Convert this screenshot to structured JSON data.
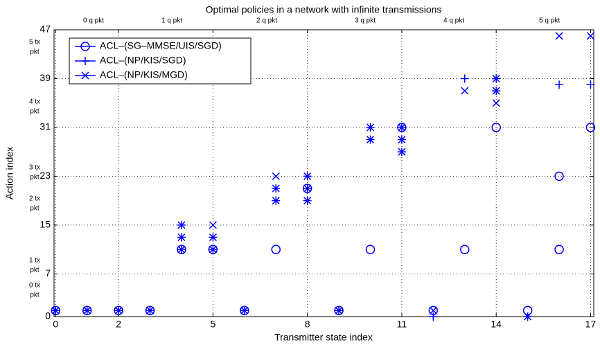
{
  "chart_data": {
    "type": "scatter",
    "title": "Optimal policies in a network with infinite transmissions",
    "x_label": "Transmitter state index",
    "y_label": "Action index",
    "xlim": [
      -0.05,
      17.1
    ],
    "ylim": [
      0,
      47
    ],
    "xticks": [
      0,
      2,
      5,
      8,
      11,
      14,
      17
    ],
    "yticks": [
      0,
      7,
      15,
      23,
      31,
      39,
      47
    ],
    "grid": true,
    "legend": "upper left",
    "top_labels": [
      "0 q pkt",
      "1 q pkt",
      "2 q pkt",
      "3 q pkt",
      "4 q pkt",
      "5 q pkt"
    ],
    "side_labels": [
      [
        "0 tx",
        "pkt"
      ],
      [
        "1 tx",
        "pkt"
      ],
      [
        "2 tx",
        "pkt"
      ],
      [
        "3 tx",
        "pkt"
      ],
      [
        "4 tx",
        "pkt"
      ],
      [
        "5 tx",
        "pkt"
      ]
    ],
    "series": [
      {
        "name": "ACL–(SG–MMSE/UIS/SGD)",
        "color": "#0000ff",
        "marker": "circle",
        "x": [
          0,
          1,
          2,
          3,
          4,
          5,
          6,
          7,
          8,
          9,
          10,
          11,
          12,
          13,
          14,
          15,
          16,
          16,
          17
        ],
        "y": [
          1,
          1,
          1,
          1,
          11,
          11,
          1,
          11,
          21,
          1,
          11,
          31,
          1,
          11,
          31,
          1,
          11,
          23,
          31
        ]
      },
      {
        "name": "ACL–(NP/KIS/SGD)",
        "color": "#0000ff",
        "marker": "plus",
        "x": [
          0,
          1,
          2,
          3,
          4,
          4,
          4,
          5,
          5,
          6,
          7,
          7,
          8,
          8,
          8,
          9,
          10,
          10,
          11,
          11,
          11,
          12,
          13,
          14,
          14,
          15,
          16,
          17
        ],
        "y": [
          1,
          1,
          1,
          1,
          11,
          13,
          15,
          11,
          13,
          1,
          19,
          21,
          19,
          21,
          23,
          1,
          29,
          31,
          27,
          29,
          31,
          0,
          39,
          37,
          39,
          0,
          38,
          38
        ]
      },
      {
        "name": "ACL–(NP/KIS/MGD)",
        "color": "#0000ff",
        "marker": "x",
        "x": [
          0,
          1,
          2,
          3,
          4,
          4,
          4,
          5,
          5,
          5,
          6,
          7,
          7,
          7,
          8,
          8,
          8,
          9,
          10,
          10,
          11,
          11,
          11,
          12,
          13,
          14,
          14,
          14,
          15,
          16,
          17
        ],
        "y": [
          1,
          1,
          1,
          1,
          11,
          13,
          15,
          11,
          13,
          15,
          1,
          19,
          21,
          23,
          19,
          21,
          23,
          1,
          29,
          31,
          27,
          29,
          31,
          1,
          37,
          35,
          37,
          39,
          0,
          46,
          46
        ]
      }
    ]
  }
}
